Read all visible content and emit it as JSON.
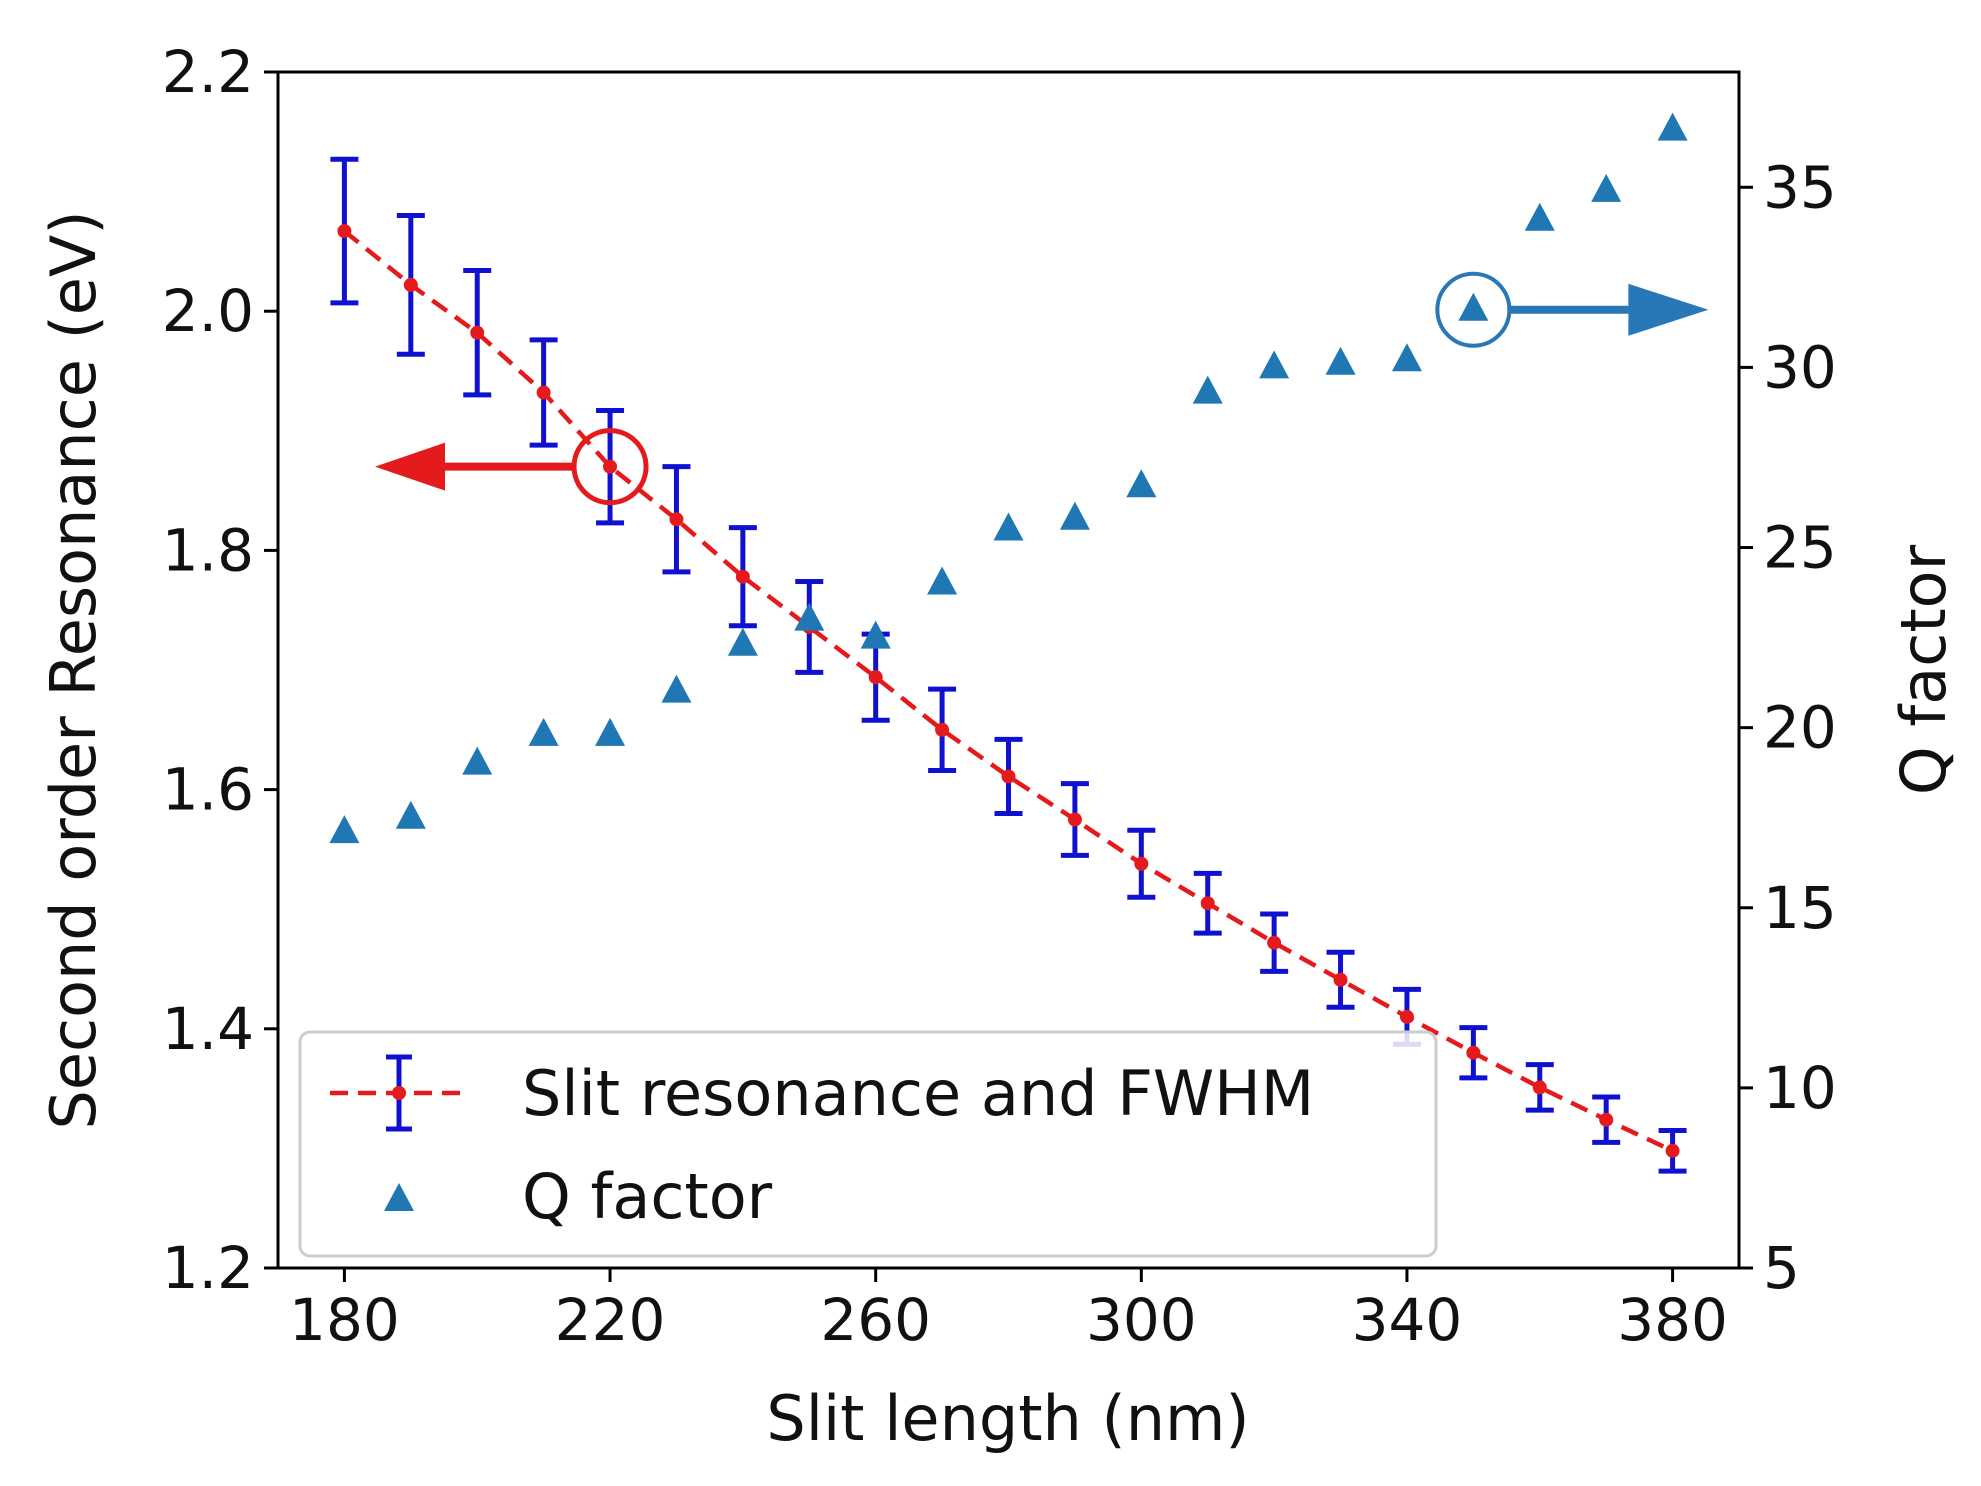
{
  "chart_data": {
    "type": "scatter",
    "xlabel": "Slit length (nm)",
    "ylabel": "Second order Resonance (eV)",
    "y2label": "Q factor",
    "xlim": [
      170,
      390
    ],
    "ylim": [
      1.2,
      2.2
    ],
    "y2lim": [
      5,
      38.2
    ],
    "xticks": [
      180,
      220,
      260,
      300,
      340,
      380
    ],
    "xtick_labels": [
      "180",
      "220",
      "260",
      "300",
      "340",
      "380"
    ],
    "yticks": [
      1.2,
      1.4,
      1.6,
      1.8,
      2.0,
      2.2
    ],
    "ytick_labels": [
      "1.2",
      "1.4",
      "1.6",
      "1.8",
      "2.0",
      "2.2"
    ],
    "y2ticks": [
      5,
      10,
      15,
      20,
      25,
      30,
      35
    ],
    "y2tick_labels": [
      "5",
      "10",
      "15",
      "20",
      "25",
      "30",
      "35"
    ],
    "grid": false,
    "legend_position": "bottom-left",
    "series": [
      {
        "name": "Slit resonance and FWHM",
        "axis": "left",
        "style": "dashed-line-with-errorbars",
        "line_color": "#e41a1c",
        "error_color": "#1010d0",
        "x": [
          180,
          190,
          200,
          210,
          220,
          230,
          240,
          250,
          260,
          270,
          280,
          290,
          300,
          310,
          320,
          330,
          340,
          350,
          360,
          370,
          380
        ],
        "y": [
          2.067,
          2.022,
          1.982,
          1.932,
          1.87,
          1.826,
          1.778,
          1.736,
          1.694,
          1.65,
          1.611,
          1.575,
          1.538,
          1.505,
          1.472,
          1.441,
          1.41,
          1.38,
          1.351,
          1.324,
          1.298
        ],
        "err": [
          0.06,
          0.058,
          0.052,
          0.044,
          0.047,
          0.044,
          0.041,
          0.038,
          0.036,
          0.034,
          0.031,
          0.03,
          0.028,
          0.025,
          0.024,
          0.023,
          0.023,
          0.021,
          0.019,
          0.019,
          0.017
        ]
      },
      {
        "name": "Q factor",
        "axis": "right",
        "style": "triangle-markers",
        "color": "#1f77b4",
        "x": [
          180,
          190,
          200,
          210,
          220,
          230,
          240,
          250,
          260,
          270,
          280,
          290,
          300,
          310,
          320,
          330,
          340,
          350,
          360,
          370,
          380
        ],
        "y": [
          17.1,
          17.5,
          19.0,
          19.8,
          19.8,
          21.0,
          22.3,
          23.0,
          22.5,
          24.0,
          25.5,
          25.8,
          26.7,
          29.3,
          30.0,
          30.1,
          30.2,
          31.6,
          34.1,
          34.9,
          36.6
        ]
      }
    ],
    "annotations": [
      {
        "target_series": "Slit resonance and FWHM",
        "point_x": 220,
        "point_y": 1.87,
        "arrow_direction": "left",
        "color": "#e41a1c"
      },
      {
        "target_series": "Q factor",
        "point_x": 350,
        "point_y": 31.6,
        "arrow_direction": "right",
        "color": "#2878b8"
      }
    ]
  }
}
